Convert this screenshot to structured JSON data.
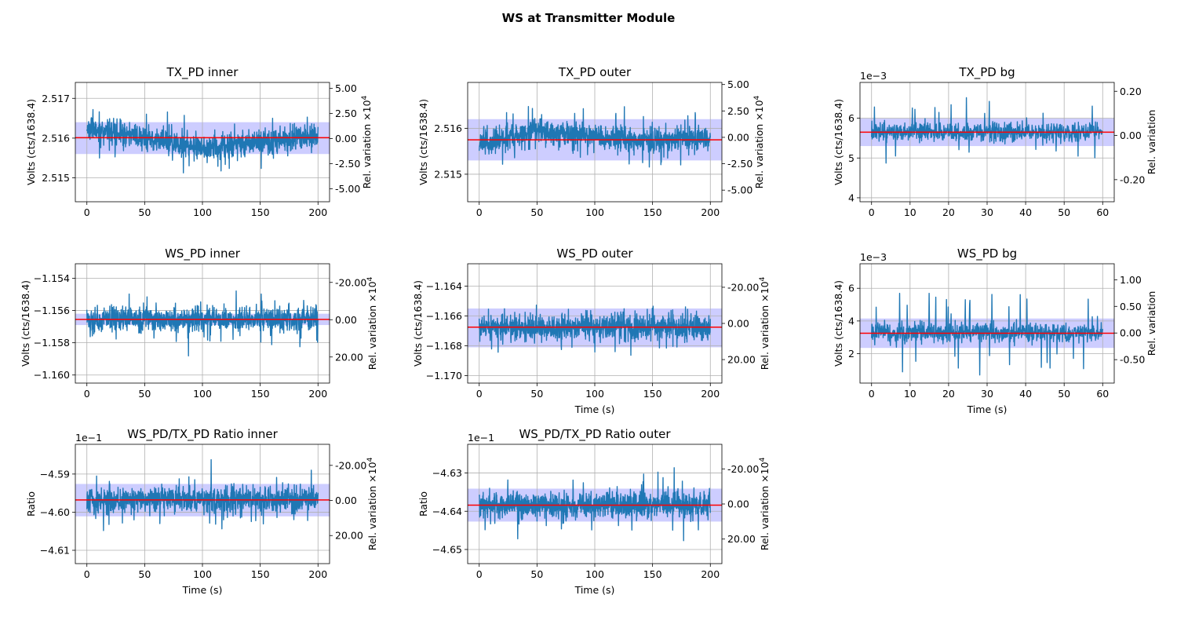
{
  "figure": {
    "suptitle": "WS at Transmitter Module",
    "colors": {
      "trace": "#1f77b4",
      "mean": "#ff0000",
      "band": "#c8c8ff",
      "grid": "#b0b0b0"
    }
  },
  "chart_data": [
    {
      "id": "tx-pd-inner",
      "type": "line",
      "title": "TX_PD inner",
      "xlabel": "",
      "ylabel": "Volts (cts/1638.4)",
      "ylabel_right": "Rel. variation ×10^4",
      "xlim": [
        -10,
        210
      ],
      "ylim": [
        2.5144,
        2.5174
      ],
      "xticks": [
        0,
        50,
        100,
        150,
        200
      ],
      "xtick_labels": [
        "0",
        "50",
        "100",
        "150",
        "200"
      ],
      "yticks": [
        2.515,
        2.516,
        2.517
      ],
      "ytick_labels": [
        "2.515",
        "2.516",
        "2.517"
      ],
      "y_offset_label": "",
      "right_ticks": [
        5.0,
        2.5,
        0.0,
        -2.5,
        -5.0
      ],
      "right_tick_labels": [
        "5.00",
        "2.50",
        "0.00",
        "-2.50",
        "-5.00"
      ],
      "right_ylim": [
        -6.3,
        5.6
      ],
      "mean": 2.51601,
      "band": [
        2.5156,
        2.5164
      ],
      "trace": {
        "x_start": 0,
        "x_end": 200,
        "points": 1100,
        "noise": 0.00033,
        "spike": 0.00055,
        "seed": 11,
        "drift": [
          [
            0,
            0.00025
          ],
          [
            50,
            0
          ],
          [
            100,
            -0.00025
          ],
          [
            200,
            5e-05
          ]
        ]
      }
    },
    {
      "id": "tx-pd-outer",
      "type": "line",
      "title": "TX_PD outer",
      "xlabel": "",
      "ylabel": "Volts (cts/1638.4)",
      "ylabel_right": "Rel. variation ×10^4",
      "xlim": [
        -10,
        210
      ],
      "ylim": [
        2.5144,
        2.517
      ],
      "xticks": [
        0,
        50,
        100,
        150,
        200
      ],
      "xtick_labels": [
        "0",
        "50",
        "100",
        "150",
        "200"
      ],
      "yticks": [
        2.515,
        2.516
      ],
      "ytick_labels": [
        "2.515",
        "2.516"
      ],
      "y_offset_label": "",
      "right_ticks": [
        5.0,
        2.5,
        0.0,
        -2.5,
        -5.0
      ],
      "right_tick_labels": [
        "5.00",
        "2.50",
        "0.00",
        "-2.50",
        "-5.00"
      ],
      "right_ylim": [
        -6.1,
        5.2
      ],
      "mean": 2.51575,
      "band": [
        2.5153,
        2.5162
      ],
      "trace": {
        "x_start": 0,
        "x_end": 200,
        "points": 1100,
        "noise": 0.00028,
        "spike": 0.0005,
        "seed": 23,
        "drift": [
          [
            0,
            -0.0001
          ],
          [
            50,
            0.0002
          ],
          [
            120,
            0
          ],
          [
            200,
            0
          ]
        ]
      }
    },
    {
      "id": "tx-pd-bg",
      "type": "line",
      "title": "TX_PD bg",
      "xlabel": "",
      "ylabel": "Volts (cts/1638.4)",
      "ylabel_right": "Rel. variation",
      "xlim": [
        -3,
        63
      ],
      "ylim": [
        3.9,
        6.9
      ],
      "xticks": [
        0,
        10,
        20,
        30,
        40,
        50,
        60
      ],
      "xtick_labels": [
        "0",
        "10",
        "20",
        "30",
        "40",
        "50",
        "60"
      ],
      "yticks": [
        4,
        5,
        6
      ],
      "ytick_labels": [
        "4",
        "5",
        "6"
      ],
      "y_offset_label": "1e−3",
      "right_ticks": [
        0.2,
        0.0,
        -0.2
      ],
      "right_tick_labels": [
        "0.20",
        "0.00",
        "-0.20"
      ],
      "right_ylim": [
        -0.3,
        0.24
      ],
      "mean": 5.65,
      "band": [
        5.3,
        6.0
      ],
      "trace": {
        "x_start": 0,
        "x_end": 60,
        "points": 800,
        "noise": 0.25,
        "spike": 0.7,
        "seed": 37,
        "drift": [
          [
            0,
            0
          ],
          [
            60,
            0
          ]
        ]
      }
    },
    {
      "id": "ws-pd-inner",
      "type": "line",
      "title": "WS_PD inner",
      "xlabel": "",
      "ylabel": "Volts (cts/1638.4)",
      "ylabel_right": "Rel. variation ×10^4",
      "xlim": [
        -10,
        210
      ],
      "ylim": [
        -1.1605,
        -1.1531
      ],
      "xticks": [
        0,
        50,
        100,
        150,
        200
      ],
      "xtick_labels": [
        "0",
        "50",
        "100",
        "150",
        "200"
      ],
      "yticks": [
        -1.16,
        -1.158,
        -1.156,
        -1.154
      ],
      "ytick_labels": [
        "−1.160",
        "−1.158",
        "−1.156",
        "−1.154"
      ],
      "y_offset_label": "",
      "right_ticks": [
        -20,
        0,
        20
      ],
      "right_tick_labels": [
        "-20.00",
        "0.00",
        "20.00"
      ],
      "right_ylim": [
        34,
        -30
      ],
      "mean": -1.15655,
      "band": [
        -1.1569,
        -1.1562
      ],
      "trace": {
        "x_start": 0,
        "x_end": 200,
        "points": 1100,
        "noise": 0.0008,
        "spike": 0.0015,
        "seed": 41,
        "drift": [
          [
            0,
            0
          ],
          [
            200,
            0
          ]
        ]
      }
    },
    {
      "id": "ws-pd-outer",
      "type": "line",
      "title": "WS_PD outer",
      "xlabel": "Time (s)",
      "ylabel": "Volts (cts/1638.4)",
      "ylabel_right": "Rel. variation ×10^4",
      "xlim": [
        -10,
        210
      ],
      "ylim": [
        -1.1705,
        -1.1625
      ],
      "xticks": [
        0,
        50,
        100,
        150,
        200
      ],
      "xtick_labels": [
        "0",
        "50",
        "100",
        "150",
        "200"
      ],
      "yticks": [
        -1.17,
        -1.168,
        -1.166,
        -1.164
      ],
      "ytick_labels": [
        "−1.170",
        "−1.168",
        "−1.166",
        "−1.164"
      ],
      "y_offset_label": "",
      "right_ticks": [
        -20,
        0,
        20
      ],
      "right_tick_labels": [
        "-20.00",
        "0.00",
        "20.00"
      ],
      "right_ylim": [
        33,
        -33
      ],
      "mean": -1.16675,
      "band": [
        -1.1681,
        -1.1655
      ],
      "trace": {
        "x_start": 0,
        "x_end": 200,
        "points": 1100,
        "noise": 0.0009,
        "spike": 0.0016,
        "seed": 53,
        "drift": [
          [
            0,
            0
          ],
          [
            200,
            0
          ]
        ]
      }
    },
    {
      "id": "ws-pd-bg",
      "type": "line",
      "title": "WS_PD bg",
      "xlabel": "Time (s)",
      "ylabel": "Volts (cts/1638.4)",
      "ylabel_right": "Rel. variation",
      "xlim": [
        -3,
        63
      ],
      "ylim": [
        0.2,
        7.5
      ],
      "xticks": [
        0,
        10,
        20,
        30,
        40,
        50,
        60
      ],
      "xtick_labels": [
        "0",
        "10",
        "20",
        "30",
        "40",
        "50",
        "60"
      ],
      "yticks": [
        2,
        4,
        6
      ],
      "ytick_labels": [
        "2",
        "4",
        "6"
      ],
      "y_offset_label": "1e−3",
      "right_ticks": [
        1.0,
        0.5,
        0.0,
        -0.5
      ],
      "right_tick_labels": [
        "1.00",
        "0.50",
        "0.00",
        "-0.50"
      ],
      "right_ylim": [
        -0.94,
        1.3
      ],
      "mean": 3.25,
      "band": [
        2.35,
        4.15
      ],
      "trace": {
        "x_start": 0,
        "x_end": 60,
        "points": 800,
        "noise": 0.65,
        "spike": 2.2,
        "seed": 67,
        "drift": [
          [
            0,
            0
          ],
          [
            60,
            0
          ]
        ]
      }
    },
    {
      "id": "ratio-inner",
      "type": "line",
      "title": "WS_PD/TX_PD Ratio inner",
      "xlabel": "Time (s)",
      "ylabel": "Ratio",
      "ylabel_right": "Rel. variation ×10^4",
      "xlim": [
        -10,
        210
      ],
      "ylim": [
        -4.6135,
        -4.5822
      ],
      "xticks": [
        0,
        50,
        100,
        150,
        200
      ],
      "xtick_labels": [
        "0",
        "50",
        "100",
        "150",
        "200"
      ],
      "yticks": [
        -4.61,
        -4.6,
        -4.59
      ],
      "ytick_labels": [
        "−4.61",
        "−4.60",
        "−4.59"
      ],
      "y_offset_label": "1e−1",
      "right_ticks": [
        -20,
        0,
        20
      ],
      "right_tick_labels": [
        "-20.00",
        "0.00",
        "20.00"
      ],
      "right_ylim": [
        36,
        -32
      ],
      "mean": -4.5968,
      "band": [
        -4.6011,
        -4.5926
      ],
      "trace": {
        "x_start": 0,
        "x_end": 200,
        "points": 1100,
        "noise": 0.0035,
        "spike": 0.007,
        "seed": 79,
        "drift": [
          [
            0,
            0
          ],
          [
            200,
            0
          ]
        ]
      }
    },
    {
      "id": "ratio-outer",
      "type": "line",
      "title": "WS_PD/TX_PD Ratio outer",
      "xlabel": "Time (s)",
      "ylabel": "Ratio",
      "ylabel_right": "Rel. variation ×10^4",
      "xlim": [
        -10,
        210
      ],
      "ylim": [
        -4.6537,
        -4.6225
      ],
      "xticks": [
        0,
        50,
        100,
        150,
        200
      ],
      "xtick_labels": [
        "0",
        "50",
        "100",
        "150",
        "200"
      ],
      "yticks": [
        -4.65,
        -4.64,
        -4.63
      ],
      "ytick_labels": [
        "−4.65",
        "−4.64",
        "−4.63"
      ],
      "y_offset_label": "1e−1",
      "right_ticks": [
        -20,
        0,
        20
      ],
      "right_tick_labels": [
        "-20.00",
        "0.00",
        "20.00"
      ],
      "right_ylim": [
        34,
        -34
      ],
      "mean": -4.6384,
      "band": [
        -4.6427,
        -4.6341
      ],
      "trace": {
        "x_start": 0,
        "x_end": 200,
        "points": 1100,
        "noise": 0.0036,
        "spike": 0.007,
        "seed": 97,
        "drift": [
          [
            0,
            0
          ],
          [
            200,
            0
          ]
        ]
      }
    }
  ]
}
